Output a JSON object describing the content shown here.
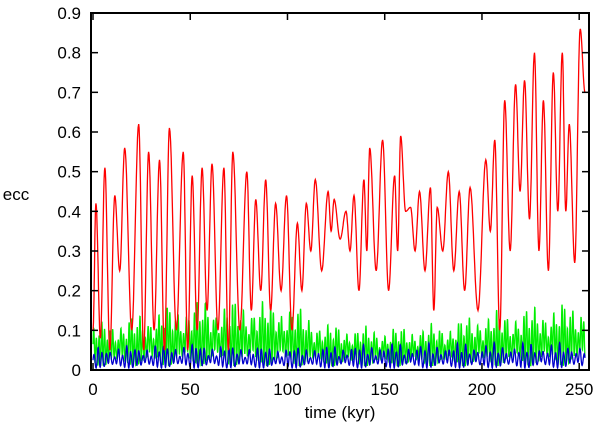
{
  "chart_data": {
    "type": "line",
    "title": "",
    "xlabel": "time (kyr)",
    "ylabel": "ecc",
    "xlim": [
      0,
      253
    ],
    "ylim": [
      0,
      0.9
    ],
    "xticks": [
      0,
      50,
      100,
      150,
      200,
      250
    ],
    "xtick_labels": [
      "0",
      "50",
      "100",
      "150",
      "200",
      "250"
    ],
    "yticks": [
      0,
      0.1,
      0.2,
      0.3,
      0.4,
      0.5,
      0.6,
      0.7,
      0.8,
      0.9
    ],
    "ytick_labels": [
      "0",
      "0.1",
      "0.2",
      "0.3",
      "0.4",
      "0.5",
      "0.6",
      "0.7",
      "0.8",
      "0.9"
    ],
    "grid": false,
    "legend": "none",
    "series": [
      {
        "name": "red",
        "color": "#ff0000",
        "start": [
          0,
          0.1
        ],
        "end": [
          253,
          0.7
        ],
        "peak_times": [
          1.5,
          6.1,
          11.2,
          16.3,
          23.5,
          28.6,
          34.2,
          39.3,
          46.4,
          51,
          56.1,
          61.2,
          67.3,
          71.9,
          79.1,
          83.7,
          88.8,
          93.9,
          99.5,
          105.1,
          109.7,
          114.3,
          120.9,
          124,
          130.1,
          134.2,
          139.3,
          142.3,
          148.9,
          155.1,
          158.2,
          163.3,
          167.9,
          173.5,
          177,
          182.7,
          188.3,
          193.9,
          202,
          206.6,
          211.7,
          217.3,
          221.9,
          227,
          231.6,
          236.7,
          241.3,
          244.9,
          250.5
        ],
        "peak_values": [
          0.42,
          0.51,
          0.44,
          0.56,
          0.62,
          0.55,
          0.53,
          0.61,
          0.55,
          0.49,
          0.51,
          0.52,
          0.51,
          0.55,
          0.5,
          0.43,
          0.48,
          0.42,
          0.44,
          0.37,
          0.42,
          0.48,
          0.45,
          0.43,
          0.4,
          0.44,
          0.48,
          0.56,
          0.58,
          0.49,
          0.59,
          0.41,
          0.45,
          0.46,
          0.41,
          0.5,
          0.45,
          0.46,
          0.53,
          0.58,
          0.68,
          0.72,
          0.73,
          0.8,
          0.68,
          0.75,
          0.8,
          0.62,
          0.86
        ],
        "trough_values": [
          0.08,
          0.05,
          0.25,
          0.1,
          0.05,
          0.1,
          0.05,
          0.1,
          0.05,
          0.1,
          0.15,
          0.1,
          0.05,
          0.1,
          0.15,
          0.2,
          0.15,
          0.2,
          0.1,
          0.2,
          0.3,
          0.25,
          0.35,
          0.33,
          0.3,
          0.2,
          0.3,
          0.25,
          0.2,
          0.3,
          0.4,
          0.3,
          0.25,
          0.15,
          0.3,
          0.25,
          0.2,
          0.15,
          0.35,
          0.1,
          0.3,
          0.45,
          0.38,
          0.3,
          0.25,
          0.4,
          0.4,
          0.27
        ]
      },
      {
        "name": "green",
        "color": "#00ee00",
        "period_kyr": 1.4,
        "min": 0.01,
        "max_envelope": [
          [
            0,
            0.12
          ],
          [
            20,
            0.14
          ],
          [
            50,
            0.18
          ],
          [
            100,
            0.18
          ],
          [
            120,
            0.12
          ],
          [
            150,
            0.11
          ],
          [
            180,
            0.12
          ],
          [
            200,
            0.15
          ],
          [
            253,
            0.18
          ]
        ]
      },
      {
        "name": "blue",
        "color": "#0000cc",
        "period_kyr": 2.1,
        "min": 0.005,
        "max_envelope": [
          [
            0,
            0.06
          ],
          [
            50,
            0.07
          ],
          [
            100,
            0.06
          ],
          [
            150,
            0.07
          ],
          [
            200,
            0.07
          ],
          [
            253,
            0.07
          ]
        ]
      }
    ]
  }
}
